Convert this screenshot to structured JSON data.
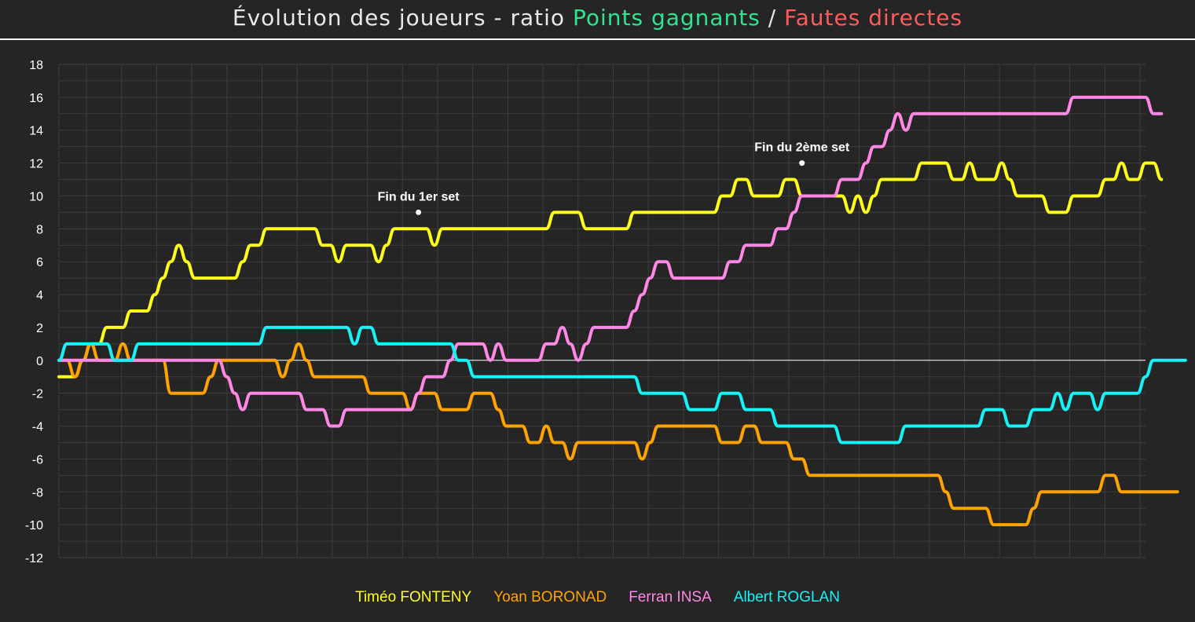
{
  "title": {
    "prefix": "Évolution des joueurs - ratio ",
    "green": "Points gagnants",
    "slash": " / ",
    "red": "Fautes directes"
  },
  "colors": {
    "background": "#252525",
    "grid": "#3d3d3d",
    "zero_line": "#ffffff",
    "tick_text": "#ffffff",
    "title_green": "#2ee58f",
    "title_red": "#ff5b5b"
  },
  "chart_data": {
    "type": "line",
    "title": "Évolution des joueurs - ratio Points gagnants / Fautes directes",
    "xlabel": "",
    "ylabel": "",
    "ylim": [
      -12,
      18
    ],
    "xlim": [
      0,
      136
    ],
    "yticks": [
      18,
      16,
      14,
      12,
      10,
      8,
      6,
      4,
      2,
      0,
      -2,
      -4,
      -6,
      -8,
      -10,
      -12
    ],
    "grid": true,
    "legend_position": "bottom",
    "annotations": [
      {
        "text": "Fin du 1er set",
        "x": 45,
        "y": 9
      },
      {
        "text": "Fin du 2ème set",
        "x": 93,
        "y": 12
      }
    ],
    "series": [
      {
        "name": "Timéo FONTENY",
        "color": "#ffff19",
        "values": [
          -1,
          -1,
          -1,
          0,
          1,
          1,
          2,
          2,
          2,
          3,
          3,
          3,
          4,
          5,
          6,
          7,
          6,
          5,
          5,
          5,
          5,
          5,
          5,
          6,
          7,
          7,
          8,
          8,
          8,
          8,
          8,
          8,
          8,
          7,
          7,
          6,
          7,
          7,
          7,
          7,
          6,
          7,
          8,
          8,
          8,
          8,
          8,
          7,
          8,
          8,
          8,
          8,
          8,
          8,
          8,
          8,
          8,
          8,
          8,
          8,
          8,
          8,
          9,
          9,
          9,
          9,
          8,
          8,
          8,
          8,
          8,
          8,
          9,
          9,
          9,
          9,
          9,
          9,
          9,
          9,
          9,
          9,
          9,
          10,
          10,
          11,
          11,
          10,
          10,
          10,
          10,
          11,
          11,
          10,
          10,
          10,
          10,
          10,
          10,
          9,
          10,
          9,
          10,
          11,
          11,
          11,
          11,
          11,
          12,
          12,
          12,
          12,
          11,
          11,
          12,
          11,
          11,
          11,
          12,
          11,
          10,
          10,
          10,
          10,
          9,
          9,
          9,
          10,
          10,
          10,
          10,
          11,
          11,
          12,
          11,
          11,
          12,
          12,
          11
        ]
      },
      {
        "name": "Yoan BORONAD",
        "color": "#ffa300",
        "values": [
          0,
          0,
          -1,
          0,
          1,
          0,
          0,
          0,
          1,
          0,
          0,
          0,
          0,
          0,
          -2,
          -2,
          -2,
          -2,
          -2,
          -1,
          0,
          0,
          0,
          0,
          0,
          0,
          0,
          0,
          -1,
          0,
          1,
          0,
          -1,
          -1,
          -1,
          -1,
          -1,
          -1,
          -1,
          -2,
          -2,
          -2,
          -2,
          -2,
          -3,
          -2,
          -2,
          -2,
          -3,
          -3,
          -3,
          -3,
          -2,
          -2,
          -2,
          -3,
          -4,
          -4,
          -4,
          -5,
          -5,
          -4,
          -5,
          -5,
          -6,
          -5,
          -5,
          -5,
          -5,
          -5,
          -5,
          -5,
          -5,
          -6,
          -5,
          -4,
          -4,
          -4,
          -4,
          -4,
          -4,
          -4,
          -4,
          -5,
          -5,
          -5,
          -4,
          -4,
          -5,
          -5,
          -5,
          -5,
          -6,
          -6,
          -7,
          -7,
          -7,
          -7,
          -7,
          -7,
          -7,
          -7,
          -7,
          -7,
          -7,
          -7,
          -7,
          -7,
          -7,
          -7,
          -7,
          -8,
          -9,
          -9,
          -9,
          -9,
          -9,
          -10,
          -10,
          -10,
          -10,
          -10,
          -9,
          -8,
          -8,
          -8,
          -8,
          -8,
          -8,
          -8,
          -8,
          -7,
          -7,
          -8,
          -8,
          -8,
          -8,
          -8,
          -8,
          -8,
          -8
        ]
      },
      {
        "name": "Ferran INSA",
        "color": "#ff88e6",
        "values": [
          0,
          0,
          0,
          0,
          0,
          0,
          0,
          0,
          0,
          0,
          0,
          0,
          0,
          0,
          0,
          0,
          0,
          0,
          0,
          0,
          0,
          -1,
          -2,
          -3,
          -2,
          -2,
          -2,
          -2,
          -2,
          -2,
          -2,
          -3,
          -3,
          -3,
          -4,
          -4,
          -3,
          -3,
          -3,
          -3,
          -3,
          -3,
          -3,
          -3,
          -3,
          -2,
          -1,
          -1,
          -1,
          0,
          1,
          1,
          1,
          1,
          0,
          1,
          0,
          0,
          0,
          0,
          0,
          1,
          1,
          2,
          1,
          0,
          1,
          2,
          2,
          2,
          2,
          2,
          3,
          4,
          5,
          6,
          6,
          5,
          5,
          5,
          5,
          5,
          5,
          5,
          6,
          6,
          7,
          7,
          7,
          7,
          8,
          8,
          9,
          10,
          10,
          10,
          10,
          10,
          11,
          11,
          11,
          12,
          13,
          13,
          14,
          15,
          14,
          15,
          15,
          15,
          15,
          15,
          15,
          15,
          15,
          15,
          15,
          15,
          15,
          15,
          15,
          15,
          15,
          15,
          15,
          15,
          15,
          16,
          16,
          16,
          16,
          16,
          16,
          16,
          16,
          16,
          16,
          15,
          15
        ]
      },
      {
        "name": "Albert ROGLAN",
        "color": "#15f3f7",
        "values": [
          0,
          1,
          1,
          1,
          1,
          1,
          1,
          0,
          0,
          0,
          1,
          1,
          1,
          1,
          1,
          1,
          1,
          1,
          1,
          1,
          1,
          1,
          1,
          1,
          1,
          1,
          2,
          2,
          2,
          2,
          2,
          2,
          2,
          2,
          2,
          2,
          2,
          1,
          2,
          2,
          1,
          1,
          1,
          1,
          1,
          1,
          1,
          1,
          1,
          1,
          0,
          0,
          -1,
          -1,
          -1,
          -1,
          -1,
          -1,
          -1,
          -1,
          -1,
          -1,
          -1,
          -1,
          -1,
          -1,
          -1,
          -1,
          -1,
          -1,
          -1,
          -1,
          -1,
          -2,
          -2,
          -2,
          -2,
          -2,
          -2,
          -3,
          -3,
          -3,
          -3,
          -2,
          -2,
          -2,
          -3,
          -3,
          -3,
          -3,
          -4,
          -4,
          -4,
          -4,
          -4,
          -4,
          -4,
          -4,
          -5,
          -5,
          -5,
          -5,
          -5,
          -5,
          -5,
          -5,
          -4,
          -4,
          -4,
          -4,
          -4,
          -4,
          -4,
          -4,
          -4,
          -4,
          -3,
          -3,
          -3,
          -4,
          -4,
          -4,
          -3,
          -3,
          -3,
          -2,
          -3,
          -2,
          -2,
          -2,
          -3,
          -2,
          -2,
          -2,
          -2,
          -2,
          -1,
          0,
          0,
          0,
          0,
          0
        ]
      }
    ]
  }
}
